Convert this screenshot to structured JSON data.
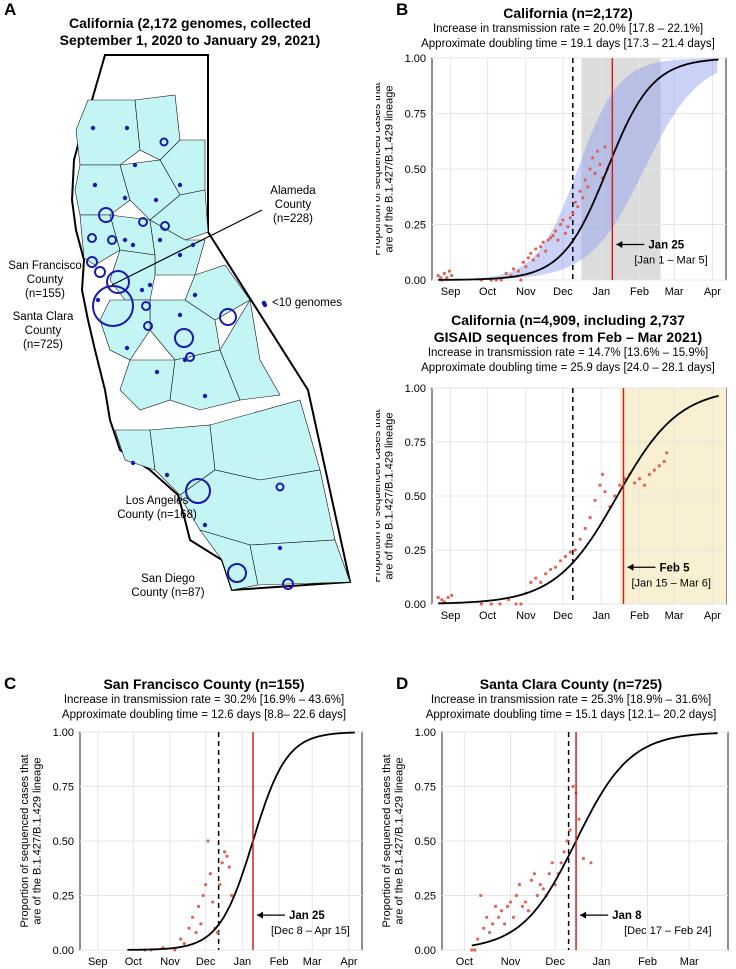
{
  "panelA": {
    "letter": "A",
    "title_line1": "California (2,172 genomes, collected",
    "title_line2": "September 1, 2020 to January 29, 2021)",
    "labels": {
      "alameda1": "Alameda",
      "alameda2": "County",
      "alameda3": "(n=228)",
      "sf1": "San Francisco",
      "sf2": "County",
      "sf3": "(n=155)",
      "sc1": "Santa Clara",
      "sc2": "County",
      "sc3": "(n=725)",
      "la1": "Los Angeles",
      "la2": "County (n=168)",
      "sd1": "San Diego",
      "sd2": "County (n=87)",
      "legend": "<10 genomes"
    },
    "colors": {
      "fill": "#c4f5f5",
      "marker": "#1a1aad"
    }
  },
  "panelB": {
    "letter": "B",
    "chart1": {
      "title": "California (n=2,172)",
      "line1": "Increase in transmission rate = 20.0% [17.8 – 22.1%]",
      "line2": "Approximate doubling time = 19.1 days [17.3 – 21.4 days]",
      "annot_bold": "Jan 25",
      "annot_range": "[Jan 1 – Mar 5]"
    },
    "chart2": {
      "title_line1": "California (n=4,909, including 2,737",
      "title_line2": "GISAID sequences from Feb – Mar 2021)",
      "line1": "Increase in transmission rate = 14.7% [13.6% – 15.9%]",
      "line2": "Approximate doubling time = 25.9 days [24.0 – 28.1 days]",
      "annot_bold": "Feb 5",
      "annot_range": "[Jan 15 – Mar 6]"
    }
  },
  "panelC": {
    "letter": "C",
    "title": "San Francisco County (n=155)",
    "line1": "Increase in transmission rate = 30.2% [16.9% – 43.6%]",
    "line2": "Approximate doubling time = 12.6 days [8.8– 22.6 days]",
    "annot_bold": "Jan 25",
    "annot_range": "[Dec 8 – Apr 15]"
  },
  "panelD": {
    "letter": "D",
    "title": "Santa Clara County (n=725)",
    "line1": "Increase in transmission rate = 25.3% [18.9% – 31.6%]",
    "line2": "Approximate doubling time = 15.1 days [12.1– 20.2 days]",
    "annot_bold": "Jan 8",
    "annot_range": "[Dec 17 – Feb 24]"
  },
  "ylabel_line1": "Proportion of sequenced cases that",
  "ylabel_line2": "are of the B.1.427/B.1.429 lineage",
  "colors": {
    "curve": "#000000",
    "points": "#e0645a",
    "redline": "#cc2222",
    "band": "#8a9cf0",
    "grey": "#dcdcdc",
    "yellow": "#f8f0d0"
  },
  "chart_data": [
    {
      "id": "B1",
      "type": "scatter",
      "title": "California (n=2,172)",
      "xlabel": "",
      "ylabel": "Proportion of sequenced cases that are of the B.1.427/B.1.429 lineage",
      "ylim": [
        0,
        1
      ],
      "y_ticks": [
        "0.00",
        "0.25",
        "0.50",
        "0.75",
        "1.00"
      ],
      "xlim_day": [
        0,
        238
      ],
      "x_ticks": [
        {
          "label": "Sep",
          "day": 15
        },
        {
          "label": "Oct",
          "day": 45
        },
        {
          "label": "Nov",
          "day": 76
        },
        {
          "label": "Dec",
          "day": 106
        },
        {
          "label": "Jan",
          "day": 137
        },
        {
          "label": "Feb",
          "day": 168
        },
        {
          "label": "Mar",
          "day": 196
        },
        {
          "label": "Apr",
          "day": 227
        }
      ],
      "curve": {
        "x0_day": 5,
        "x1_day": 232,
        "mid_day": 142,
        "k": 0.055
      },
      "band": {
        "from_day": 5,
        "to_day": 232,
        "lo_mid": 172,
        "lo_k": 0.045,
        "hi_mid": 118,
        "hi_k": 0.06
      },
      "grey_rect": {
        "from_day": 121,
        "to_day": 185
      },
      "dashed_day": 114,
      "red_day": 146,
      "points": [
        [
          5,
          0.02
        ],
        [
          7,
          0.01
        ],
        [
          8,
          0.0
        ],
        [
          10,
          0.03
        ],
        [
          12,
          0.01
        ],
        [
          14,
          0.04
        ],
        [
          16,
          0.02
        ],
        [
          40,
          0.0
        ],
        [
          48,
          0.0
        ],
        [
          52,
          0.0
        ],
        [
          56,
          0.0
        ],
        [
          60,
          0.03
        ],
        [
          64,
          0.02
        ],
        [
          66,
          0.05
        ],
        [
          70,
          0.04
        ],
        [
          72,
          0.0
        ],
        [
          74,
          0.08
        ],
        [
          76,
          0.06
        ],
        [
          78,
          0.1
        ],
        [
          80,
          0.12
        ],
        [
          82,
          0.09
        ],
        [
          84,
          0.14
        ],
        [
          86,
          0.11
        ],
        [
          88,
          0.15
        ],
        [
          90,
          0.17
        ],
        [
          92,
          0.13
        ],
        [
          94,
          0.18
        ],
        [
          96,
          0.19
        ],
        [
          98,
          0.2
        ],
        [
          100,
          0.22
        ],
        [
          102,
          0.18
        ],
        [
          104,
          0.25
        ],
        [
          106,
          0.27
        ],
        [
          108,
          0.21
        ],
        [
          110,
          0.24
        ],
        [
          112,
          0.28
        ],
        [
          114,
          0.3
        ],
        [
          116,
          0.35
        ],
        [
          118,
          0.33
        ],
        [
          120,
          0.4
        ],
        [
          122,
          0.37
        ],
        [
          124,
          0.45
        ],
        [
          126,
          0.42
        ],
        [
          128,
          0.5
        ],
        [
          130,
          0.55
        ],
        [
          132,
          0.48
        ],
        [
          134,
          0.58
        ],
        [
          136,
          0.52
        ],
        [
          138,
          0.46
        ],
        [
          140,
          0.6
        ],
        [
          142,
          0.5
        ]
      ]
    },
    {
      "id": "B2",
      "type": "scatter",
      "title": "California (n=4,909, including 2,737 GISAID sequences from Feb – Mar 2021)",
      "ylim": [
        0,
        1
      ],
      "xlim_day": [
        0,
        238
      ],
      "curve": {
        "x0_day": 5,
        "x1_day": 232,
        "mid_day": 150,
        "k": 0.04
      },
      "yellow_rect": {
        "from_day": 152,
        "to_day": 238
      },
      "dashed_day": 114,
      "red_day": 155,
      "points": [
        [
          5,
          0.03
        ],
        [
          8,
          0.02
        ],
        [
          10,
          0.01
        ],
        [
          13,
          0.03
        ],
        [
          16,
          0.04
        ],
        [
          40,
          0.0
        ],
        [
          48,
          0.0
        ],
        [
          55,
          0.0
        ],
        [
          62,
          0.02
        ],
        [
          68,
          0.0
        ],
        [
          72,
          0.0
        ],
        [
          76,
          0.05
        ],
        [
          80,
          0.1
        ],
        [
          84,
          0.12
        ],
        [
          88,
          0.1
        ],
        [
          92,
          0.14
        ],
        [
          96,
          0.16
        ],
        [
          100,
          0.17
        ],
        [
          104,
          0.2
        ],
        [
          108,
          0.22
        ],
        [
          112,
          0.24
        ],
        [
          116,
          0.25
        ],
        [
          120,
          0.3
        ],
        [
          124,
          0.35
        ],
        [
          128,
          0.4
        ],
        [
          132,
          0.48
        ],
        [
          136,
          0.55
        ],
        [
          138,
          0.6
        ],
        [
          140,
          0.52
        ],
        [
          144,
          0.45
        ],
        [
          148,
          0.5
        ],
        [
          152,
          0.55
        ],
        [
          156,
          0.58
        ],
        [
          160,
          0.6
        ],
        [
          164,
          0.56
        ],
        [
          168,
          0.58
        ],
        [
          172,
          0.55
        ],
        [
          176,
          0.6
        ],
        [
          180,
          0.62
        ],
        [
          184,
          0.64
        ],
        [
          188,
          0.66
        ],
        [
          190,
          0.7
        ]
      ]
    },
    {
      "id": "C",
      "type": "scatter",
      "title": "San Francisco County (n=155)",
      "ylim": [
        0,
        1
      ],
      "xlim_day": [
        0,
        238
      ],
      "curve": {
        "x0_day": 40,
        "x1_day": 232,
        "mid_day": 146,
        "k": 0.07
      },
      "dashed_day": 117,
      "red_day": 146,
      "points": [
        [
          55,
          0.0
        ],
        [
          60,
          0.0
        ],
        [
          70,
          0.01
        ],
        [
          80,
          0.0
        ],
        [
          85,
          0.05
        ],
        [
          88,
          0.03
        ],
        [
          92,
          0.1
        ],
        [
          95,
          0.15
        ],
        [
          98,
          0.08
        ],
        [
          100,
          0.2
        ],
        [
          102,
          0.12
        ],
        [
          104,
          0.25
        ],
        [
          106,
          0.3
        ],
        [
          108,
          0.5
        ],
        [
          110,
          0.35
        ],
        [
          112,
          0.22
        ],
        [
          114,
          0.1
        ],
        [
          116,
          0.08
        ],
        [
          118,
          0.3
        ],
        [
          120,
          0.4
        ],
        [
          122,
          0.45
        ],
        [
          124,
          0.43
        ],
        [
          126,
          0.38
        ],
        [
          128,
          0.25
        ]
      ]
    },
    {
      "id": "D",
      "type": "scatter",
      "title": "Santa Clara County (n=725)",
      "ylim": [
        0,
        1
      ],
      "xlim_day": [
        0,
        192
      ],
      "curve": {
        "x0_day": 20,
        "x1_day": 185,
        "mid_day": 90,
        "k": 0.055
      },
      "dashed_day": 85,
      "red_day": 90,
      "points": [
        [
          20,
          0.0
        ],
        [
          22,
          0.0
        ],
        [
          24,
          0.05
        ],
        [
          26,
          0.25
        ],
        [
          28,
          0.1
        ],
        [
          30,
          0.15
        ],
        [
          32,
          0.08
        ],
        [
          34,
          0.12
        ],
        [
          36,
          0.2
        ],
        [
          38,
          0.15
        ],
        [
          40,
          0.18
        ],
        [
          42,
          0.12
        ],
        [
          44,
          0.2
        ],
        [
          46,
          0.22
        ],
        [
          48,
          0.15
        ],
        [
          50,
          0.25
        ],
        [
          52,
          0.3
        ],
        [
          54,
          0.2
        ],
        [
          56,
          0.22
        ],
        [
          58,
          0.18
        ],
        [
          60,
          0.32
        ],
        [
          62,
          0.35
        ],
        [
          64,
          0.25
        ],
        [
          66,
          0.3
        ],
        [
          68,
          0.28
        ],
        [
          70,
          0.25
        ],
        [
          72,
          0.35
        ],
        [
          74,
          0.4
        ],
        [
          76,
          0.3
        ],
        [
          78,
          0.35
        ],
        [
          80,
          0.4
        ],
        [
          82,
          0.45
        ],
        [
          84,
          0.5
        ],
        [
          86,
          0.55
        ],
        [
          88,
          0.75
        ],
        [
          90,
          0.72
        ],
        [
          92,
          0.6
        ],
        [
          95,
          0.42
        ],
        [
          100,
          0.4
        ]
      ]
    }
  ]
}
